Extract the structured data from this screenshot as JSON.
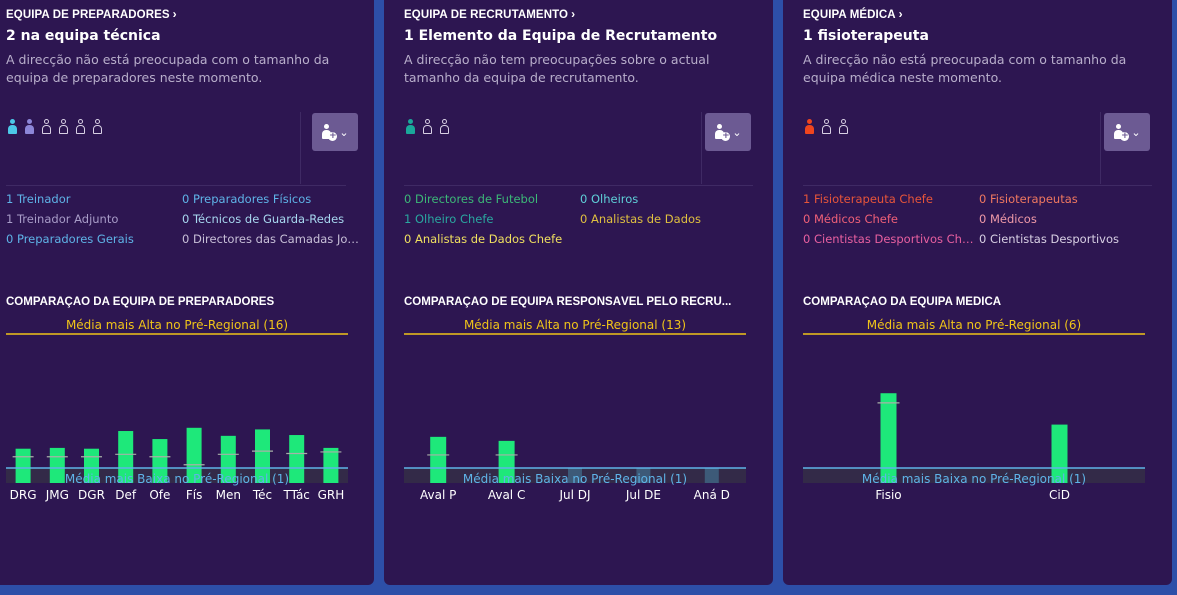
{
  "colors": {
    "background": "#2d4fa8",
    "panel": "#2d1651",
    "high_line": "#f0c419",
    "low_line": "#5fb4e8",
    "bar": "#1ee87a"
  },
  "panels": [
    {
      "section_title": "EQUIPA DE PREPARADORES",
      "headline": "2 na equipa técnica",
      "description": "A direcção não está preocupada com o tamanho da equipa de preparadores neste momento.",
      "staff_icons": [
        {
          "state": "filled",
          "color": "#4cc8e8"
        },
        {
          "state": "filled",
          "color": "#8c86d8"
        },
        {
          "state": "empty"
        },
        {
          "state": "empty"
        },
        {
          "state": "empty"
        },
        {
          "state": "empty"
        }
      ],
      "roles": [
        {
          "text": "1 Treinador",
          "color": "#5fb4e8"
        },
        {
          "text": "0 Preparadores Físicos",
          "color": "#5fb4e8"
        },
        {
          "text": "1 Treinador Adjunto",
          "color": "#a89cc8"
        },
        {
          "text": "0 Técnicos de Guarda-Redes",
          "color": "#a8d8f0"
        },
        {
          "text": "0 Preparadores Gerais",
          "color": "#5fb4e8"
        },
        {
          "text": "0 Directores das Camadas Jov...",
          "color": "#c8c0d8"
        }
      ],
      "comparison_title": "COMPARAÇÃO DA EQUIPA DE PREPARADORES",
      "chart_data": {
        "type": "bar",
        "high_label": "Média mais Alta no Pré-Regional (16)",
        "low_label": "Média mais Baixa no Pré-Regional (1)",
        "high": 16,
        "low": 1,
        "categories": [
          "DRG",
          "JMG",
          "DGR",
          "Def",
          "Ofe",
          "Fís",
          "Men",
          "Téc",
          "TTác",
          "GRH"
        ],
        "values": [
          3.4,
          3.5,
          3.4,
          5.6,
          4.6,
          6.0,
          5.0,
          5.8,
          5.1,
          3.5
        ],
        "averages": [
          2.4,
          2.4,
          2.4,
          2.7,
          2.4,
          1.4,
          2.7,
          3.1,
          2.8,
          3.0
        ]
      }
    },
    {
      "section_title": "EQUIPA DE RECRUTAMENTO",
      "headline": "1 Elemento da Equipa de Recrutamento",
      "description": "A direcção não tem preocupações sobre o actual tamanho da equipa de recrutamento.",
      "staff_icons": [
        {
          "state": "filled",
          "color": "#1aa89a"
        },
        {
          "state": "empty"
        },
        {
          "state": "empty"
        }
      ],
      "roles": [
        {
          "text": "0 Directores de Futebol",
          "color": "#3cb878"
        },
        {
          "text": "0 Olheiros",
          "color": "#5fd0d8"
        },
        {
          "text": "1 Olheiro Chefe",
          "color": "#2aa8a0"
        },
        {
          "text": "0 Analistas de Dados",
          "color": "#e0c040"
        },
        {
          "text": "0 Analistas de Dados Chefe",
          "color": "#f0e060"
        }
      ],
      "comparison_title": "COMPARAÇÃO DE EQUIPA RESPONSÁVEL PELO RECRU...",
      "chart_data": {
        "type": "bar",
        "high_label": "Média mais Alta no Pré-Regional (13)",
        "low_label": "Média mais Baixa no Pré-Regional (1)",
        "high": 13,
        "low": 1,
        "categories": [
          "Aval P",
          "Aval C",
          "Jul DJ",
          "Jul DE",
          "Aná D"
        ],
        "values": [
          4.1,
          3.7,
          0,
          0,
          0
        ],
        "averages": [
          2.3,
          2.3,
          0,
          0,
          0
        ]
      }
    },
    {
      "section_title": "EQUIPA MÉDICA",
      "headline": "1 fisioterapeuta",
      "description": "A direcção não está preocupada com o tamanho da equipa médica neste momento.",
      "staff_icons": [
        {
          "state": "filled",
          "color": "#f0451e"
        },
        {
          "state": "empty"
        },
        {
          "state": "empty"
        }
      ],
      "roles": [
        {
          "text": "1 Fisioterapeuta Chefe",
          "color": "#e8553a"
        },
        {
          "text": "0 Fisioterapeutas",
          "color": "#f07860"
        },
        {
          "text": "0 Médicos Chefe",
          "color": "#f06078"
        },
        {
          "text": "0 Médicos",
          "color": "#f09aa8"
        },
        {
          "text": "0 Cientistas Desportivos Chefe",
          "color": "#e860a0"
        },
        {
          "text": "0 Cientistas Desportivos",
          "color": "#d8d0e4"
        }
      ],
      "comparison_title": "COMPARAÇÃO DA EQUIPA MÉDICA",
      "chart_data": {
        "type": "bar",
        "high_label": "Média mais Alta no Pré-Regional (6)",
        "low_label": "Média mais Baixa no Pré-Regional (1)",
        "high": 6,
        "low": 1,
        "categories": [
          "Fisio",
          "CiD"
        ],
        "values": [
          4.1,
          2.8
        ],
        "averages": [
          3.7,
          0
        ]
      }
    }
  ]
}
